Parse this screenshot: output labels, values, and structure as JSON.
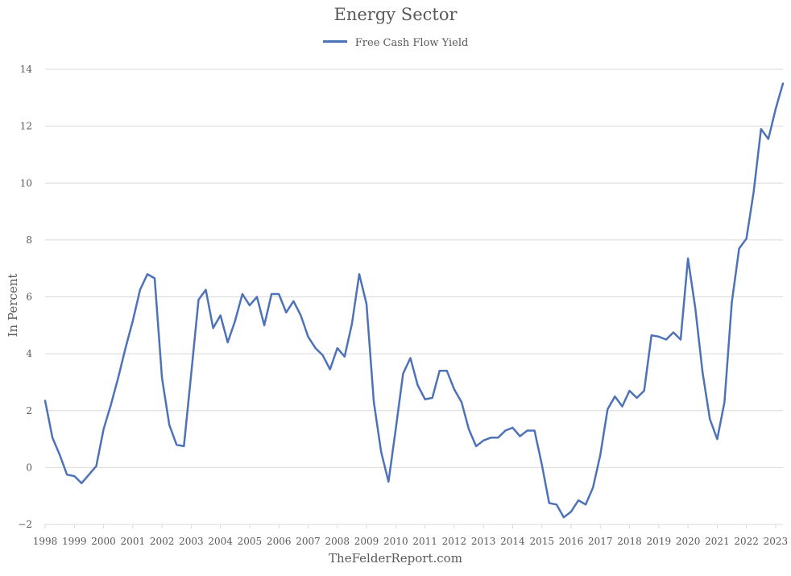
{
  "chart_data": {
    "type": "line",
    "title": "Energy Sector",
    "ylabel": "In Percent",
    "xlabel": "TheFelderReport.com",
    "ylim": [
      -2,
      14
    ],
    "y_ticks": [
      "−2",
      "0",
      "2",
      "4",
      "6",
      "8",
      "10",
      "12",
      "14"
    ],
    "x_ticks": [
      "1998",
      "1999",
      "2000",
      "2001",
      "2002",
      "2003",
      "2004",
      "2005",
      "2006",
      "2007",
      "2008",
      "2009",
      "2010",
      "2011",
      "2012",
      "2013",
      "2014",
      "2015",
      "2016",
      "2017",
      "2018",
      "2019",
      "2020",
      "2021",
      "2022",
      "2023"
    ],
    "grid": true,
    "legend": "top-center",
    "colors": {
      "line": "#4e72b8",
      "grid": "#d9d9d9",
      "text": "#595959"
    },
    "series": [
      {
        "name": "Free Cash Flow Yield",
        "x": [
          1998.0,
          1998.25,
          1998.5,
          1998.75,
          1999.0,
          1999.25,
          1999.5,
          1999.75,
          2000.0,
          2000.25,
          2000.5,
          2000.75,
          2001.0,
          2001.25,
          2001.5,
          2001.75,
          2002.0,
          2002.25,
          2002.5,
          2002.75,
          2003.0,
          2003.25,
          2003.5,
          2003.75,
          2004.0,
          2004.25,
          2004.5,
          2004.75,
          2005.0,
          2005.25,
          2005.5,
          2005.75,
          2006.0,
          2006.25,
          2006.5,
          2006.75,
          2007.0,
          2007.25,
          2007.5,
          2007.75,
          2008.0,
          2008.25,
          2008.5,
          2008.75,
          2009.0,
          2009.25,
          2009.5,
          2009.75,
          2010.0,
          2010.25,
          2010.5,
          2010.75,
          2011.0,
          2011.25,
          2011.5,
          2011.75,
          2012.0,
          2012.25,
          2012.5,
          2012.75,
          2013.0,
          2013.25,
          2013.5,
          2013.75,
          2014.0,
          2014.25,
          2014.5,
          2014.75,
          2015.0,
          2015.25,
          2015.5,
          2015.75,
          2016.0,
          2016.25,
          2016.5,
          2016.75,
          2017.0,
          2017.25,
          2017.5,
          2017.75,
          2018.0,
          2018.25,
          2018.5,
          2018.75,
          2019.0,
          2019.25,
          2019.5,
          2019.75,
          2020.0,
          2020.25,
          2020.5,
          2020.75,
          2021.0,
          2021.25,
          2021.5,
          2021.75,
          2022.0,
          2022.25,
          2022.5,
          2022.75,
          2023.0,
          2023.25
        ],
        "values": [
          2.35,
          1.05,
          0.45,
          -0.25,
          -0.3,
          -0.55,
          -0.25,
          0.05,
          1.35,
          2.2,
          3.15,
          4.2,
          5.15,
          6.25,
          6.8,
          6.65,
          3.15,
          1.5,
          0.8,
          0.75,
          3.3,
          5.9,
          6.25,
          4.9,
          5.35,
          4.4,
          5.15,
          6.1,
          5.7,
          6.0,
          5.0,
          6.1,
          6.1,
          5.45,
          5.85,
          5.35,
          4.6,
          4.2,
          3.95,
          3.45,
          4.2,
          3.9,
          5.05,
          6.8,
          5.75,
          2.3,
          0.55,
          -0.5,
          1.35,
          3.3,
          3.85,
          2.9,
          2.4,
          2.45,
          3.4,
          3.4,
          2.75,
          2.3,
          1.35,
          0.75,
          0.95,
          1.05,
          1.05,
          1.3,
          1.4,
          1.1,
          1.3,
          1.3,
          0.1,
          -1.25,
          -1.3,
          -1.75,
          -1.55,
          -1.15,
          -1.3,
          -0.7,
          0.45,
          2.05,
          2.5,
          2.15,
          2.7,
          2.45,
          2.7,
          4.65,
          4.6,
          4.5,
          4.75,
          4.5,
          7.35,
          5.6,
          3.35,
          1.7,
          1.0,
          2.3,
          5.8,
          7.7,
          8.05,
          9.7,
          11.9,
          11.55,
          12.6,
          13.5
        ]
      }
    ]
  }
}
